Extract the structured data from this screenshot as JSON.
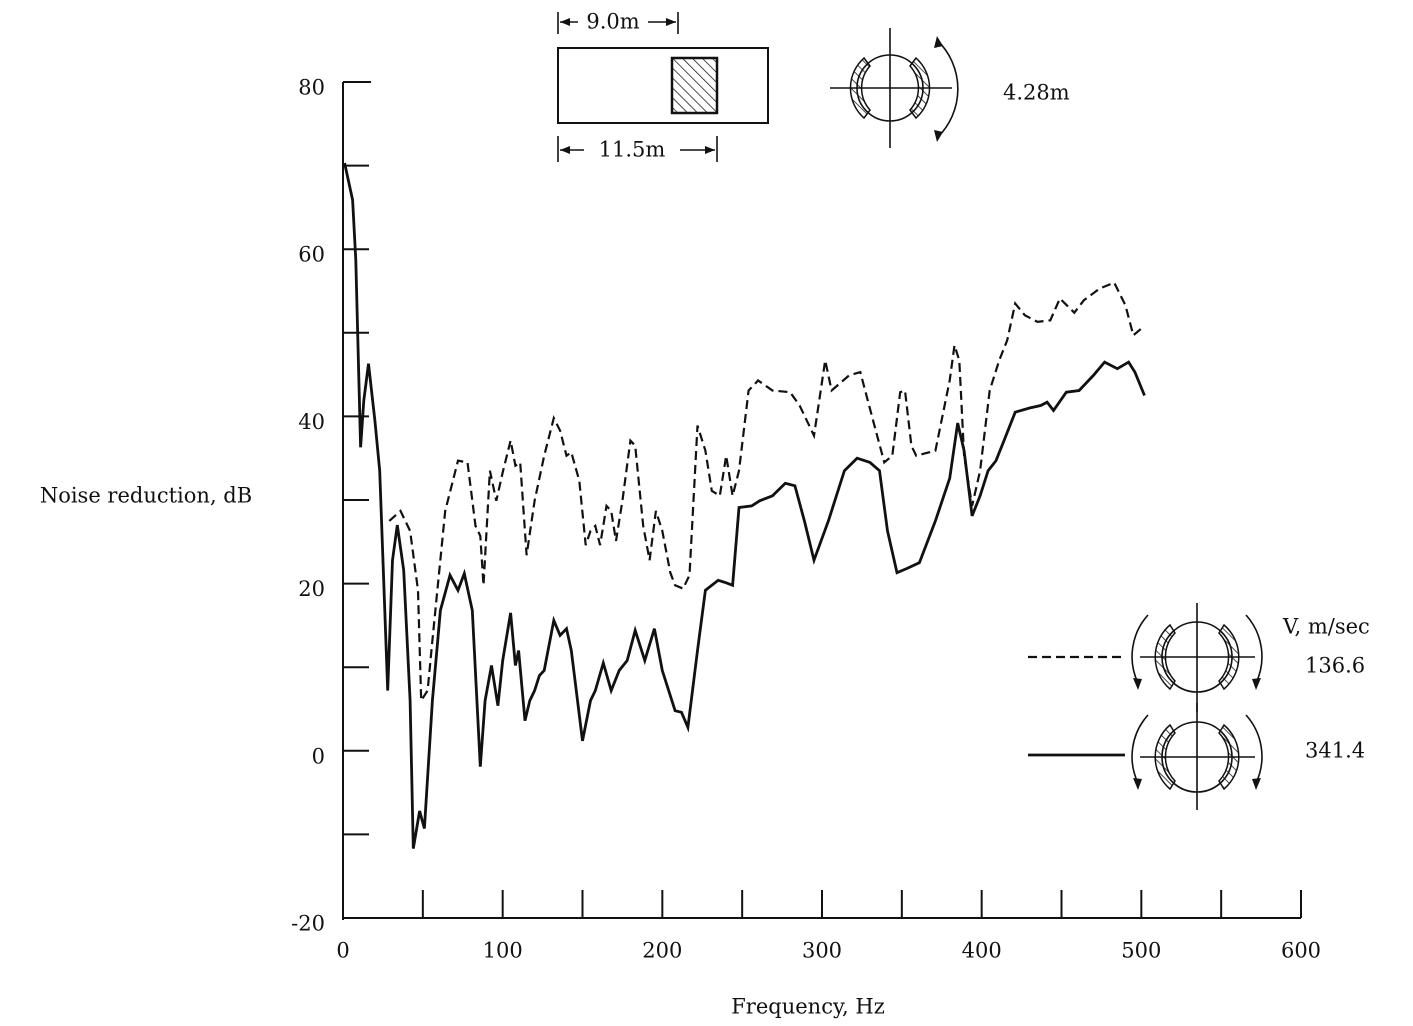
{
  "chart_data": {
    "type": "line",
    "xlabel": "Frequency, Hz",
    "ylabel": "Noise reduction, dB",
    "xlim": [
      0,
      600
    ],
    "ylim": [
      -20,
      80
    ],
    "xticks": [
      0,
      100,
      200,
      300,
      400,
      500,
      600
    ],
    "yticks": [
      -20,
      0,
      20,
      40,
      60,
      80
    ],
    "legend_title": "V, m/sec",
    "annotations": [
      "9.0m",
      "11.5m",
      "4.28m"
    ],
    "series": [
      {
        "name": "136.6",
        "color": "#111111",
        "style": "dashed",
        "x": [
          29,
          36,
          42,
          47,
          49,
          53,
          56,
          64,
          72,
          78,
          83,
          86,
          88,
          92,
          96,
          100,
          105,
          108,
          111,
          115,
          120,
          126,
          132,
          136,
          140,
          143,
          148,
          152,
          155,
          158,
          161,
          165,
          168,
          171,
          175,
          180,
          183,
          188,
          192,
          196,
          200,
          205,
          208,
          213,
          217,
          222,
          227,
          231,
          236,
          240,
          244,
          248,
          254,
          260,
          269,
          280,
          286,
          295,
          302,
          306,
          317,
          324,
          332,
          339,
          344,
          349,
          352,
          356,
          359,
          371,
          380,
          383,
          386,
          389,
          394,
          399,
          405,
          411,
          416,
          421,
          427,
          435,
          443,
          449,
          458,
          464,
          474,
          483,
          490,
          495,
          500
        ],
        "values": [
          27.5,
          28.7,
          26.3,
          19.2,
          6,
          7.2,
          13.2,
          28.7,
          34.7,
          34.5,
          26.9,
          25.7,
          19.8,
          33.5,
          29.9,
          33.3,
          37.1,
          34.1,
          34.5,
          23.4,
          29.9,
          35.3,
          39.8,
          38.3,
          35.3,
          35.7,
          32.3,
          24.6,
          26.3,
          26.9,
          24.6,
          29.3,
          28.7,
          25.1,
          29.9,
          37.1,
          36.5,
          26.9,
          22.8,
          28.7,
          26.3,
          21.3,
          19.8,
          19.4,
          21,
          38.9,
          35.9,
          31.1,
          30.5,
          35.3,
          30.5,
          33.5,
          43.1,
          44.3,
          43.1,
          42.9,
          41.3,
          37.7,
          46.7,
          43.1,
          44.9,
          45.3,
          39.5,
          34.5,
          35.3,
          42.9,
          43.1,
          36.5,
          35.3,
          35.9,
          44.3,
          48.5,
          46.7,
          35.3,
          29.3,
          33.5,
          43.1,
          46.7,
          49.1,
          53.5,
          52.1,
          51.3,
          51.5,
          54.1,
          52.4,
          53.9,
          55.3,
          56,
          53.3,
          49.7,
          50.5
        ]
      },
      {
        "name": "341.4",
        "color": "#111111",
        "style": "solid",
        "x": [
          1,
          6,
          8,
          11,
          13,
          16,
          20,
          23,
          28,
          31,
          34,
          38,
          42,
          44,
          48,
          51,
          56,
          61,
          67,
          72,
          76,
          81,
          86,
          89,
          93,
          97,
          100,
          105,
          108,
          110,
          114,
          117,
          120,
          123,
          126,
          132,
          136,
          140,
          143,
          150,
          155,
          158,
          163,
          168,
          173,
          178,
          183,
          189,
          195,
          200,
          208,
          212,
          216,
          222,
          227,
          235,
          240,
          244,
          248,
          256,
          261,
          269,
          277,
          283,
          289,
          295,
          304,
          314,
          322,
          330,
          336,
          341,
          347,
          353,
          361,
          371,
          380,
          385,
          389,
          394,
          399,
          404,
          409,
          414,
          421,
          430,
          437,
          441,
          445,
          453,
          461,
          470,
          477,
          485,
          492,
          496,
          502
        ],
        "values": [
          70.3,
          65.9,
          58.7,
          36.3,
          41.9,
          46.3,
          39.5,
          33.5,
          7.2,
          22.8,
          27,
          21.6,
          6,
          -11.7,
          -7.2,
          -9.3,
          6,
          16.8,
          21,
          19.2,
          21.2,
          16.8,
          -1.9,
          6,
          10.2,
          5.4,
          10.8,
          16.5,
          10.2,
          12,
          3.6,
          6,
          7.2,
          9,
          9.6,
          15.6,
          13.8,
          14.6,
          12,
          1.2,
          6,
          7.2,
          10.5,
          7.2,
          9.6,
          10.8,
          14.4,
          10.8,
          14.6,
          9.6,
          4.8,
          4.6,
          2.8,
          12,
          19.2,
          20.4,
          20.1,
          19.8,
          29.1,
          29.3,
          29.9,
          30.5,
          32,
          31.7,
          27.5,
          22.8,
          27.5,
          33.5,
          35,
          34.5,
          33.5,
          26.3,
          21.3,
          21.8,
          22.5,
          27.5,
          32.6,
          39.2,
          35.9,
          28.1,
          30.5,
          33.5,
          34.7,
          37.1,
          40.5,
          41,
          41.3,
          41.7,
          40.7,
          42.9,
          43.1,
          44.9,
          46.5,
          45.7,
          46.5,
          45.3,
          42.5
        ]
      }
    ]
  }
}
